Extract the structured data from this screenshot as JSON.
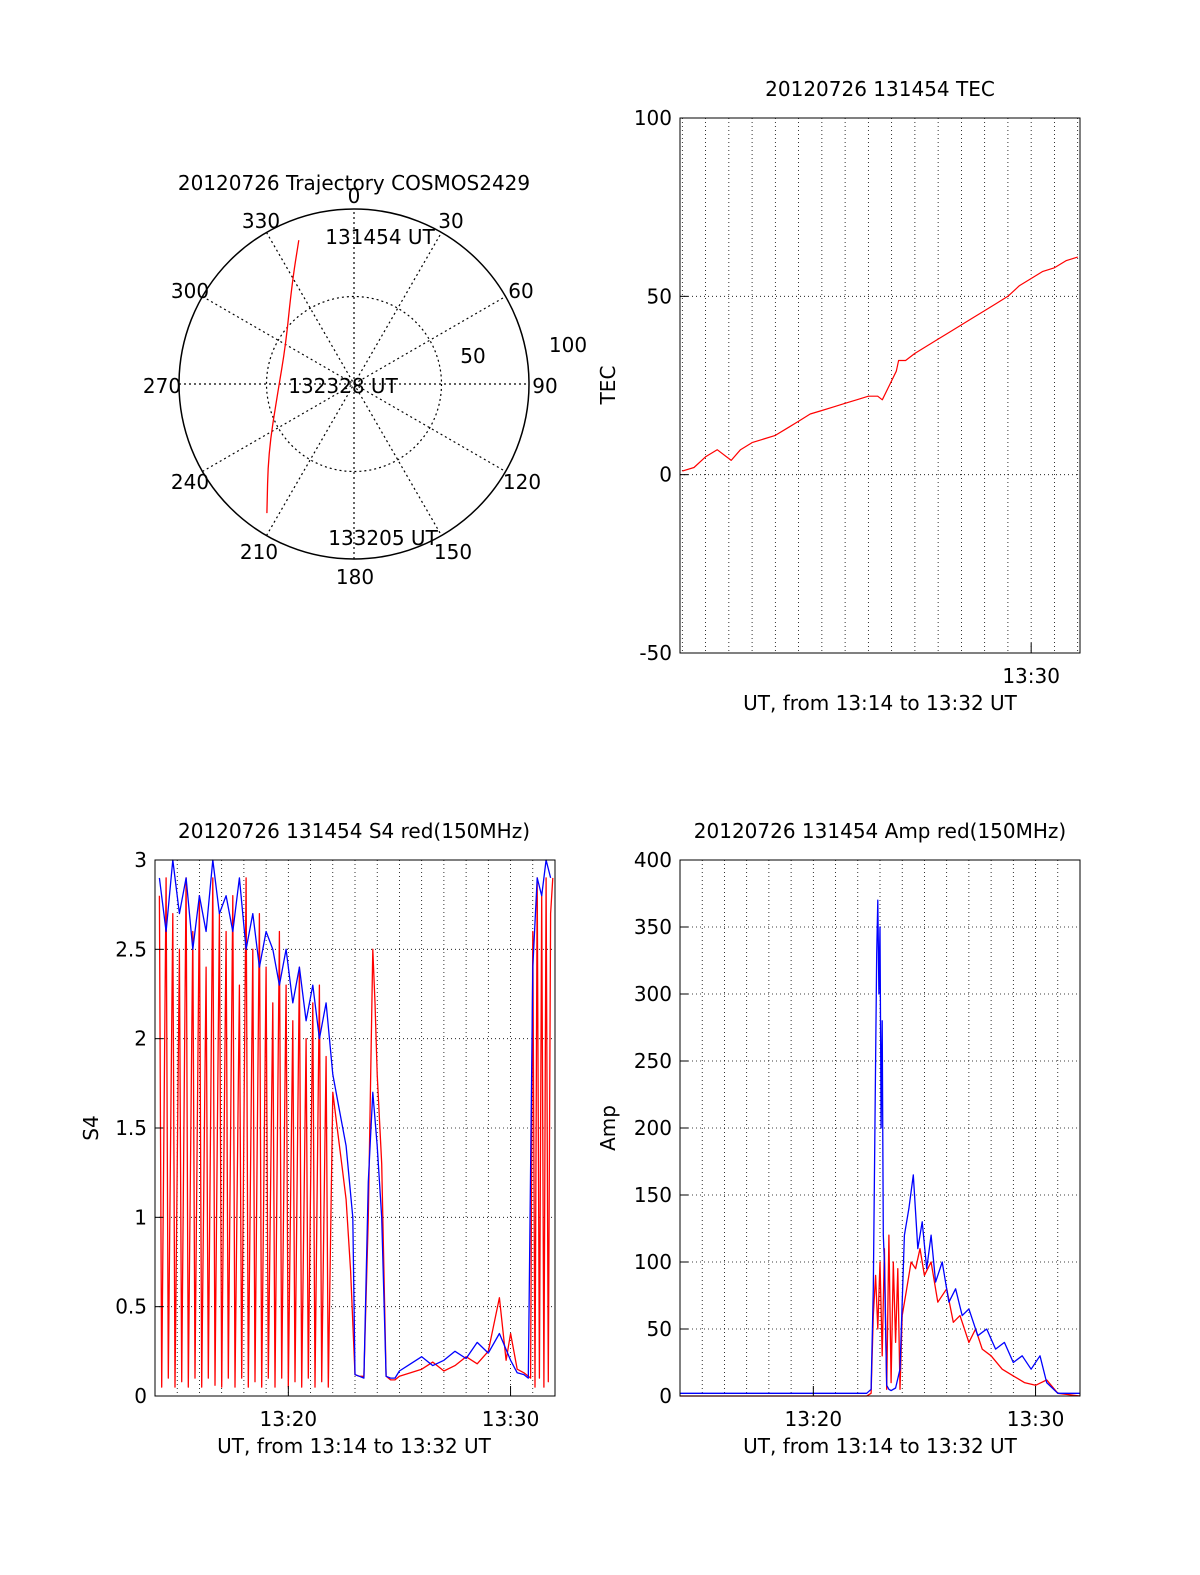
{
  "colors": {
    "red": "#ff0000",
    "blue": "#0000ff",
    "black": "#000000"
  },
  "chart_data": [
    {
      "type": "polar",
      "title": "20120726 Trajectory COSMOS2429",
      "azimuth_labels": [
        "0",
        "30",
        "60",
        "90",
        "120",
        "150",
        "180",
        "210",
        "240",
        "270",
        "300",
        "330"
      ],
      "radial_labels": [
        "50",
        "100"
      ],
      "time_labels": {
        "start": "131454 UT",
        "mid": "132328 UT",
        "end": "133205 UT"
      },
      "trajectory": [
        {
          "az": 339,
          "zen": 88
        },
        {
          "az": 328,
          "zen": 67
        },
        {
          "az": 300,
          "zen": 45
        },
        {
          "az": 263,
          "zen": 44
        },
        {
          "az": 231,
          "zen": 63
        },
        {
          "az": 214,
          "zen": 89
        }
      ]
    },
    {
      "type": "line",
      "title": "20120726 131454 TEC",
      "ylabel": "TEC",
      "xlabel": "UT, from 13:14 to 13:32 UT",
      "ylim": [
        -50,
        100
      ],
      "yticks": [
        "100",
        "50",
        "0",
        "-50"
      ],
      "xtick_labels": [
        "13:30"
      ],
      "xlim_min": [
        14.9,
        32.1
      ],
      "grid": true,
      "series": [
        {
          "color": "red",
          "x_min": [
            15.0,
            15.5,
            16.0,
            16.5,
            17.1,
            17.5,
            18.0,
            18.5,
            19.0,
            19.5,
            20.0,
            20.5,
            21.0,
            21.5,
            22.0,
            22.5,
            23.0,
            23.4,
            23.6,
            23.9,
            24.2,
            24.3,
            24.6,
            25.0,
            25.5,
            26.0,
            26.5,
            27.0,
            27.5,
            28.0,
            28.5,
            29.0,
            29.5,
            30.0,
            30.5,
            31.0,
            31.5,
            32.0
          ],
          "y": [
            1,
            2,
            5,
            7,
            4,
            7,
            9,
            10,
            11,
            13,
            15,
            17,
            18,
            19,
            20,
            21,
            22,
            22,
            21,
            25,
            29,
            32,
            32,
            34,
            36,
            38,
            40,
            42,
            44,
            46,
            48,
            50,
            53,
            55,
            57,
            58,
            60,
            61
          ]
        }
      ]
    },
    {
      "type": "line",
      "title": "20120726 131454 S4 red(150MHz)",
      "ylabel": "S4",
      "xlabel": "UT, from 13:14 to 13:32 UT",
      "ylim": [
        0,
        3
      ],
      "yticks": [
        "3",
        "2.5",
        "2",
        "1.5",
        "1",
        "0.5",
        "0"
      ],
      "xtick_labels": [
        "13:20",
        "13:30"
      ],
      "xlim_min": [
        14.0,
        32.0
      ],
      "grid": true,
      "series": [
        {
          "color": "red",
          "x_min": [
            14.2,
            14.3,
            14.5,
            14.6,
            14.8,
            14.9,
            15.1,
            15.2,
            15.4,
            15.5,
            15.7,
            15.8,
            16.0,
            16.1,
            16.3,
            16.4,
            16.6,
            16.7,
            16.9,
            17.0,
            17.2,
            17.3,
            17.5,
            17.6,
            17.8,
            17.9,
            18.1,
            18.2,
            18.4,
            18.5,
            18.7,
            18.8,
            19.0,
            19.1,
            19.3,
            19.4,
            19.6,
            19.7,
            19.9,
            20.0,
            20.2,
            20.3,
            20.5,
            20.6,
            20.8,
            20.9,
            21.1,
            21.2,
            21.4,
            21.5,
            21.7,
            21.8,
            22.0,
            22.2,
            22.4,
            22.6,
            22.8,
            23.0,
            23.2,
            23.4,
            23.6,
            23.8,
            23.9,
            24.0,
            24.2,
            24.4,
            24.6,
            24.8,
            25.0,
            25.5,
            26.0,
            26.5,
            27.0,
            27.5,
            28.0,
            28.5,
            29.0,
            29.5,
            29.8,
            30.0,
            30.3,
            30.6,
            30.8,
            30.9,
            31.0,
            31.1,
            31.2,
            31.3,
            31.4,
            31.5,
            31.6,
            31.7,
            31.8,
            31.9
          ],
          "y": [
            2.8,
            0.05,
            2.9,
            0.1,
            2.7,
            0.05,
            2.5,
            0.08,
            2.9,
            0.05,
            2.6,
            0.1,
            2.8,
            0.05,
            2.4,
            0.1,
            2.9,
            0.06,
            2.7,
            0.05,
            2.6,
            0.1,
            2.8,
            0.05,
            2.3,
            0.1,
            2.9,
            0.05,
            2.5,
            0.08,
            2.7,
            0.05,
            2.4,
            0.1,
            2.2,
            0.05,
            2.6,
            0.1,
            2.3,
            0.05,
            2.1,
            0.08,
            2.4,
            0.05,
            2.0,
            0.1,
            2.2,
            0.05,
            2.3,
            0.08,
            1.9,
            0.05,
            1.7,
            1.5,
            1.3,
            1.1,
            0.7,
            0.12,
            0.11,
            0.11,
            1.0,
            2.5,
            2.2,
            1.8,
            1.3,
            0.11,
            0.09,
            0.09,
            0.11,
            0.13,
            0.15,
            0.19,
            0.14,
            0.17,
            0.22,
            0.18,
            0.25,
            0.55,
            0.2,
            0.35,
            0.15,
            0.13,
            0.11,
            0.1,
            2.6,
            0.05,
            2.9,
            0.1,
            2.8,
            0.05,
            2.9,
            0.08,
            2.7,
            2.9
          ]
        },
        {
          "color": "blue",
          "x_min": [
            14.2,
            14.5,
            14.8,
            15.1,
            15.4,
            15.7,
            16.0,
            16.3,
            16.6,
            16.9,
            17.2,
            17.5,
            17.8,
            18.1,
            18.4,
            18.7,
            19.0,
            19.3,
            19.6,
            19.9,
            20.2,
            20.5,
            20.8,
            21.1,
            21.4,
            21.7,
            22.0,
            22.3,
            22.6,
            22.9,
            23.0,
            23.2,
            23.4,
            23.6,
            23.8,
            24.0,
            24.2,
            24.4,
            24.6,
            24.8,
            25.0,
            25.5,
            26.0,
            26.5,
            27.0,
            27.5,
            28.0,
            28.5,
            29.0,
            29.5,
            30.0,
            30.3,
            30.6,
            30.8,
            31.0,
            31.2,
            31.4,
            31.6,
            31.8
          ],
          "y": [
            2.9,
            2.6,
            3.0,
            2.7,
            2.9,
            2.5,
            2.8,
            2.6,
            3.0,
            2.7,
            2.8,
            2.6,
            2.9,
            2.5,
            2.7,
            2.4,
            2.6,
            2.5,
            2.3,
            2.5,
            2.2,
            2.4,
            2.1,
            2.3,
            2.0,
            2.2,
            1.8,
            1.6,
            1.4,
            1.0,
            0.12,
            0.11,
            0.1,
            1.2,
            1.7,
            1.4,
            1.0,
            0.11,
            0.1,
            0.1,
            0.14,
            0.18,
            0.22,
            0.17,
            0.2,
            0.25,
            0.21,
            0.3,
            0.24,
            0.35,
            0.2,
            0.13,
            0.12,
            0.1,
            2.4,
            2.9,
            2.8,
            3.0,
            2.9
          ]
        }
      ]
    },
    {
      "type": "line",
      "title": "20120726 131454 Amp red(150MHz)",
      "ylabel": "Amp",
      "xlabel": "UT, from 13:14 to 13:32 UT",
      "ylim": [
        0,
        400
      ],
      "yticks": [
        "400",
        "350",
        "300",
        "250",
        "200",
        "150",
        "100",
        "50",
        "0"
      ],
      "xtick_labels": [
        "13:20",
        "13:30"
      ],
      "xlim_min": [
        14.0,
        32.0
      ],
      "grid": true,
      "series": [
        {
          "color": "red",
          "x_min": [
            14.0,
            18.0,
            22.0,
            22.4,
            22.6,
            22.7,
            22.8,
            22.9,
            23.0,
            23.1,
            23.2,
            23.3,
            23.4,
            23.5,
            23.6,
            23.7,
            23.8,
            23.9,
            24.0,
            24.2,
            24.4,
            24.6,
            24.8,
            25.0,
            25.3,
            25.6,
            26.0,
            26.3,
            26.6,
            27.0,
            27.3,
            27.6,
            28.0,
            28.5,
            29.0,
            29.5,
            30.0,
            30.5,
            31.0,
            32.0
          ],
          "y": [
            0,
            0,
            0,
            0,
            2,
            60,
            90,
            50,
            100,
            30,
            110,
            5,
            120,
            10,
            100,
            40,
            95,
            5,
            60,
            80,
            100,
            95,
            110,
            90,
            100,
            70,
            80,
            55,
            60,
            40,
            50,
            35,
            30,
            20,
            15,
            10,
            8,
            12,
            2,
            0
          ]
        },
        {
          "color": "blue",
          "x_min": [
            14.0,
            18.0,
            22.0,
            22.4,
            22.6,
            22.7,
            22.8,
            22.85,
            22.9,
            22.95,
            23.0,
            23.05,
            23.1,
            23.15,
            23.2,
            23.3,
            23.4,
            23.5,
            23.7,
            23.9,
            24.1,
            24.3,
            24.5,
            24.7,
            24.9,
            25.1,
            25.3,
            25.5,
            25.8,
            26.1,
            26.4,
            26.7,
            27.0,
            27.4,
            27.8,
            28.2,
            28.6,
            29.0,
            29.4,
            29.8,
            30.2,
            30.5,
            31.0,
            31.5,
            32.0
          ],
          "y": [
            2,
            2,
            2,
            2,
            5,
            80,
            250,
            330,
            370,
            300,
            350,
            200,
            280,
            120,
            100,
            8,
            5,
            4,
            6,
            20,
            120,
            140,
            165,
            110,
            130,
            95,
            120,
            85,
            100,
            70,
            80,
            60,
            65,
            45,
            50,
            35,
            40,
            25,
            30,
            20,
            30,
            10,
            2,
            2,
            2
          ]
        }
      ]
    }
  ]
}
